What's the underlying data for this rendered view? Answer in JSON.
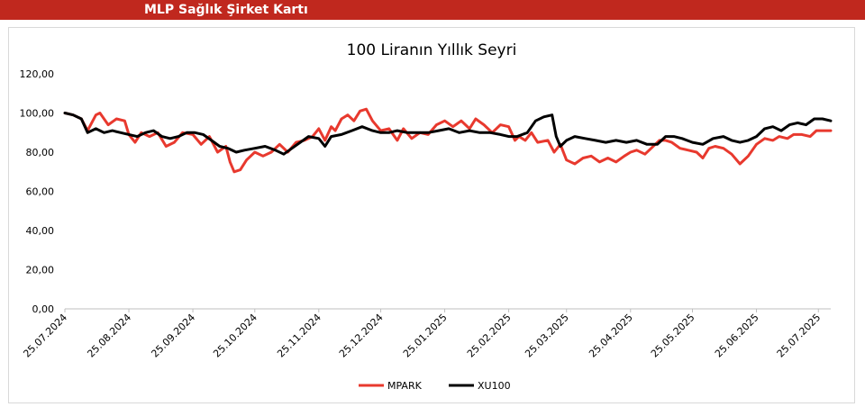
{
  "header": {
    "title": "MLP Sağlık Şirket Kartı"
  },
  "chart_data": {
    "type": "line",
    "title": "100 Liranın Yıllık Seyri",
    "ylim": [
      0,
      120
    ],
    "yticks": [
      "0,00",
      "20,00",
      "40,00",
      "60,00",
      "80,00",
      "100,00",
      "120,00"
    ],
    "ytick_values": [
      0,
      20,
      40,
      60,
      80,
      100,
      120
    ],
    "x_start": "2024-07-25",
    "x_end": "2025-07-31",
    "xticks": [
      "25.07.2024",
      "25.08.2024",
      "25.09.2024",
      "25.10.2024",
      "25.11.2024",
      "25.12.2024",
      "25.01.2025",
      "25.02.2025",
      "25.03.2025",
      "25.04.2025",
      "25.05.2025",
      "25.06.2025",
      "25.07.2025"
    ],
    "xtick_dates": [
      "2024-07-25",
      "2024-08-25",
      "2024-09-25",
      "2024-10-25",
      "2024-11-25",
      "2024-12-25",
      "2025-01-25",
      "2025-02-25",
      "2025-03-25",
      "2025-04-25",
      "2025-05-25",
      "2025-06-25",
      "2025-07-25"
    ],
    "grid": false,
    "legend_position": "bottom",
    "series": [
      {
        "name": "MPARK",
        "color": "#e8392e",
        "points": [
          [
            "2024-07-25",
            100
          ],
          [
            "2024-07-29",
            99
          ],
          [
            "2024-08-02",
            97
          ],
          [
            "2024-08-05",
            91
          ],
          [
            "2024-08-09",
            99
          ],
          [
            "2024-08-11",
            100
          ],
          [
            "2024-08-15",
            94
          ],
          [
            "2024-08-19",
            97
          ],
          [
            "2024-08-23",
            96
          ],
          [
            "2024-08-25",
            89
          ],
          [
            "2024-08-28",
            85
          ],
          [
            "2024-08-31",
            90
          ],
          [
            "2024-09-04",
            88
          ],
          [
            "2024-09-08",
            90
          ],
          [
            "2024-09-12",
            83
          ],
          [
            "2024-09-16",
            85
          ],
          [
            "2024-09-20",
            90
          ],
          [
            "2024-09-25",
            89
          ],
          [
            "2024-09-29",
            84
          ],
          [
            "2024-10-03",
            88
          ],
          [
            "2024-10-07",
            80
          ],
          [
            "2024-10-11",
            83
          ],
          [
            "2024-10-13",
            75
          ],
          [
            "2024-10-15",
            70
          ],
          [
            "2024-10-18",
            71
          ],
          [
            "2024-10-21",
            76
          ],
          [
            "2024-10-25",
            80
          ],
          [
            "2024-10-29",
            78
          ],
          [
            "2024-11-02",
            80
          ],
          [
            "2024-11-06",
            84
          ],
          [
            "2024-11-10",
            80
          ],
          [
            "2024-11-14",
            85
          ],
          [
            "2024-11-18",
            86
          ],
          [
            "2024-11-22",
            88
          ],
          [
            "2024-11-25",
            92
          ],
          [
            "2024-11-28",
            86
          ],
          [
            "2024-12-01",
            93
          ],
          [
            "2024-12-03",
            91
          ],
          [
            "2024-12-06",
            97
          ],
          [
            "2024-12-09",
            99
          ],
          [
            "2024-12-12",
            96
          ],
          [
            "2024-12-15",
            101
          ],
          [
            "2024-12-18",
            102
          ],
          [
            "2024-12-21",
            96
          ],
          [
            "2024-12-25",
            91
          ],
          [
            "2024-12-29",
            92
          ],
          [
            "2025-01-02",
            86
          ],
          [
            "2025-01-05",
            92
          ],
          [
            "2025-01-09",
            87
          ],
          [
            "2025-01-13",
            90
          ],
          [
            "2025-01-17",
            89
          ],
          [
            "2025-01-21",
            94
          ],
          [
            "2025-01-25",
            96
          ],
          [
            "2025-01-29",
            93
          ],
          [
            "2025-02-02",
            96
          ],
          [
            "2025-02-06",
            92
          ],
          [
            "2025-02-09",
            97
          ],
          [
            "2025-02-13",
            94
          ],
          [
            "2025-02-17",
            90
          ],
          [
            "2025-02-21",
            94
          ],
          [
            "2025-02-25",
            93
          ],
          [
            "2025-02-28",
            86
          ],
          [
            "2025-03-02",
            88
          ],
          [
            "2025-03-05",
            86
          ],
          [
            "2025-03-08",
            90
          ],
          [
            "2025-03-11",
            85
          ],
          [
            "2025-03-16",
            86
          ],
          [
            "2025-03-19",
            80
          ],
          [
            "2025-03-22",
            84
          ],
          [
            "2025-03-25",
            76
          ],
          [
            "2025-03-29",
            74
          ],
          [
            "2025-04-02",
            77
          ],
          [
            "2025-04-06",
            78
          ],
          [
            "2025-04-10",
            75
          ],
          [
            "2025-04-14",
            77
          ],
          [
            "2025-04-18",
            75
          ],
          [
            "2025-04-22",
            78
          ],
          [
            "2025-04-25",
            80
          ],
          [
            "2025-04-28",
            81
          ],
          [
            "2025-05-02",
            79
          ],
          [
            "2025-05-05",
            82
          ],
          [
            "2025-05-09",
            86
          ],
          [
            "2025-05-12",
            86
          ],
          [
            "2025-05-15",
            85
          ],
          [
            "2025-05-19",
            82
          ],
          [
            "2025-05-23",
            81
          ],
          [
            "2025-05-27",
            80
          ],
          [
            "2025-05-30",
            77
          ],
          [
            "2025-06-02",
            82
          ],
          [
            "2025-06-05",
            83
          ],
          [
            "2025-06-09",
            82
          ],
          [
            "2025-06-13",
            79
          ],
          [
            "2025-06-17",
            74
          ],
          [
            "2025-06-21",
            78
          ],
          [
            "2025-06-25",
            84
          ],
          [
            "2025-06-29",
            87
          ],
          [
            "2025-07-03",
            86
          ],
          [
            "2025-07-06",
            88
          ],
          [
            "2025-07-10",
            87
          ],
          [
            "2025-07-13",
            89
          ],
          [
            "2025-07-17",
            89
          ],
          [
            "2025-07-21",
            88
          ],
          [
            "2025-07-24",
            91
          ],
          [
            "2025-07-31",
            91
          ]
        ]
      },
      {
        "name": "XU100",
        "color": "#000000",
        "points": [
          [
            "2024-07-25",
            100
          ],
          [
            "2024-07-29",
            99
          ],
          [
            "2024-08-02",
            97
          ],
          [
            "2024-08-05",
            90
          ],
          [
            "2024-08-09",
            92
          ],
          [
            "2024-08-13",
            90
          ],
          [
            "2024-08-17",
            91
          ],
          [
            "2024-08-21",
            90
          ],
          [
            "2024-08-25",
            89
          ],
          [
            "2024-08-29",
            88
          ],
          [
            "2024-09-02",
            90
          ],
          [
            "2024-09-06",
            91
          ],
          [
            "2024-09-10",
            88
          ],
          [
            "2024-09-14",
            87
          ],
          [
            "2024-09-18",
            88
          ],
          [
            "2024-09-22",
            90
          ],
          [
            "2024-09-26",
            90
          ],
          [
            "2024-09-30",
            89
          ],
          [
            "2024-10-04",
            86
          ],
          [
            "2024-10-08",
            83
          ],
          [
            "2024-10-12",
            82
          ],
          [
            "2024-10-16",
            80
          ],
          [
            "2024-10-20",
            81
          ],
          [
            "2024-10-25",
            82
          ],
          [
            "2024-10-30",
            83
          ],
          [
            "2024-11-04",
            81
          ],
          [
            "2024-11-08",
            79
          ],
          [
            "2024-11-12",
            82
          ],
          [
            "2024-11-16",
            85
          ],
          [
            "2024-11-20",
            88
          ],
          [
            "2024-11-25",
            87
          ],
          [
            "2024-11-28",
            83
          ],
          [
            "2024-12-01",
            88
          ],
          [
            "2024-12-06",
            89
          ],
          [
            "2024-12-11",
            91
          ],
          [
            "2024-12-16",
            93
          ],
          [
            "2024-12-21",
            91
          ],
          [
            "2024-12-25",
            90
          ],
          [
            "2024-12-29",
            90
          ],
          [
            "2025-01-02",
            91
          ],
          [
            "2025-01-07",
            90
          ],
          [
            "2025-01-12",
            90
          ],
          [
            "2025-01-17",
            90
          ],
          [
            "2025-01-22",
            91
          ],
          [
            "2025-01-27",
            92
          ],
          [
            "2025-02-01",
            90
          ],
          [
            "2025-02-06",
            91
          ],
          [
            "2025-02-11",
            90
          ],
          [
            "2025-02-16",
            90
          ],
          [
            "2025-02-21",
            89
          ],
          [
            "2025-02-25",
            88
          ],
          [
            "2025-03-01",
            88
          ],
          [
            "2025-03-06",
            90
          ],
          [
            "2025-03-10",
            96
          ],
          [
            "2025-03-14",
            98
          ],
          [
            "2025-03-18",
            99
          ],
          [
            "2025-03-20",
            88
          ],
          [
            "2025-03-22",
            83
          ],
          [
            "2025-03-25",
            86
          ],
          [
            "2025-03-29",
            88
          ],
          [
            "2025-04-03",
            87
          ],
          [
            "2025-04-08",
            86
          ],
          [
            "2025-04-13",
            85
          ],
          [
            "2025-04-18",
            86
          ],
          [
            "2025-04-23",
            85
          ],
          [
            "2025-04-28",
            86
          ],
          [
            "2025-05-03",
            84
          ],
          [
            "2025-05-08",
            84
          ],
          [
            "2025-05-12",
            88
          ],
          [
            "2025-05-16",
            88
          ],
          [
            "2025-05-20",
            87
          ],
          [
            "2025-05-25",
            85
          ],
          [
            "2025-05-30",
            84
          ],
          [
            "2025-06-04",
            87
          ],
          [
            "2025-06-09",
            88
          ],
          [
            "2025-06-13",
            86
          ],
          [
            "2025-06-17",
            85
          ],
          [
            "2025-06-21",
            86
          ],
          [
            "2025-06-25",
            88
          ],
          [
            "2025-06-29",
            92
          ],
          [
            "2025-07-03",
            93
          ],
          [
            "2025-07-07",
            91
          ],
          [
            "2025-07-11",
            94
          ],
          [
            "2025-07-15",
            95
          ],
          [
            "2025-07-19",
            94
          ],
          [
            "2025-07-23",
            97
          ],
          [
            "2025-07-27",
            97
          ],
          [
            "2025-07-31",
            96
          ]
        ]
      }
    ]
  }
}
